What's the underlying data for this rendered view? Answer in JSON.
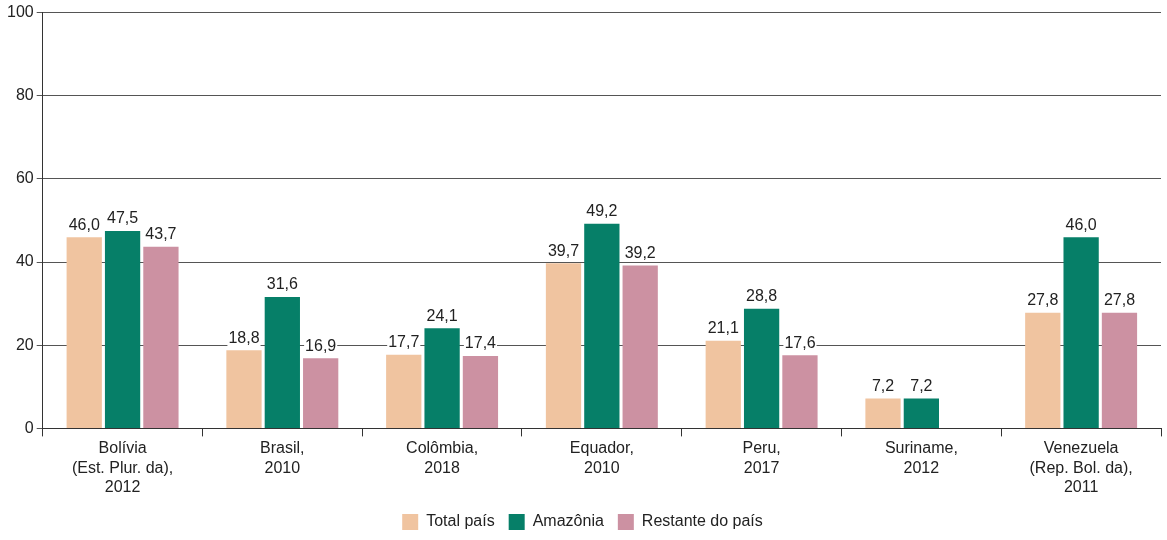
{
  "chart_data": {
    "type": "bar",
    "categories": [
      "Bolívia\n(Est. Plur. da),\n2012",
      "Brasil,\n2010",
      "Colômbia,\n2018",
      "Equador,\n2010",
      "Peru,\n2017",
      "Suriname,\n2012",
      "Venezuela\n(Rep. Bol. da),\n2011"
    ],
    "series": [
      {
        "name": "Total país",
        "color": "#f0c4a0",
        "values": [
          46.0,
          18.8,
          17.7,
          39.7,
          21.1,
          7.2,
          27.8
        ],
        "value_labels": [
          "46,0",
          "18,8",
          "17,7",
          "39,7",
          "21,1",
          "7,2",
          "27,8"
        ]
      },
      {
        "name": "Amazônia",
        "color": "#067f68",
        "values": [
          47.5,
          31.6,
          24.1,
          49.2,
          28.8,
          7.2,
          46.0
        ],
        "value_labels": [
          "47,5",
          "31,6",
          "24,1",
          "49,2",
          "28,8",
          "7,2",
          "46,0"
        ]
      },
      {
        "name": "Restante do país",
        "color": "#cc91a2",
        "values": [
          43.7,
          16.9,
          17.4,
          39.2,
          17.6,
          null,
          27.8
        ],
        "value_labels": [
          "43,7",
          "16,9",
          "17,4",
          "39,2",
          "17,6",
          null,
          "27,8"
        ]
      }
    ],
    "ylim": [
      0,
      100
    ],
    "yticks": [
      0,
      20,
      40,
      60,
      80,
      100
    ],
    "grid": "y",
    "legend": "bottom"
  }
}
